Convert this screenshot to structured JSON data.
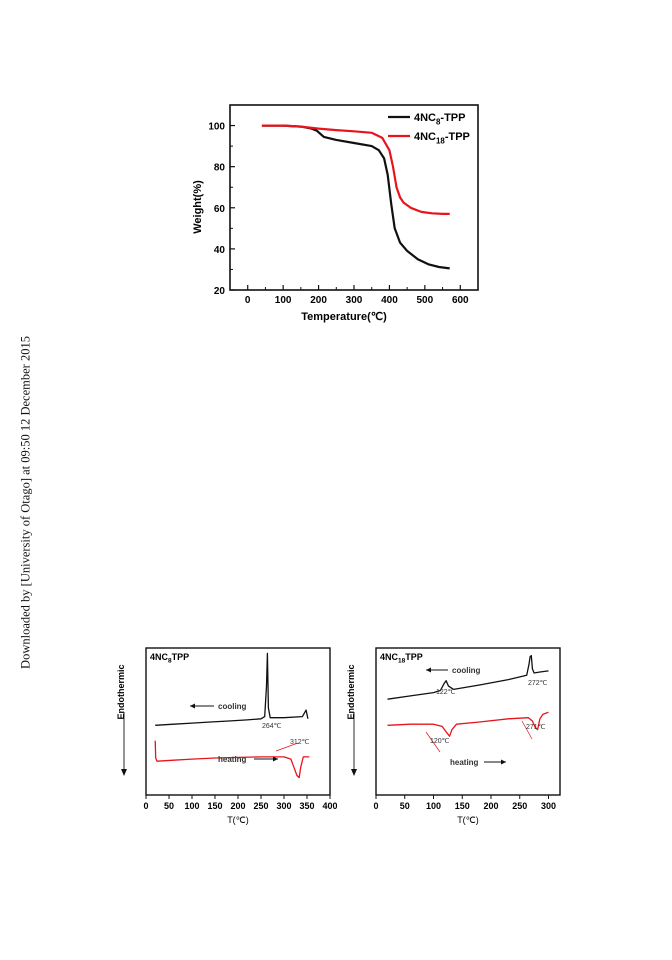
{
  "watermark": "Downloaded by [University of Otago] at 09:50 12 December 2015",
  "chart_data": [
    {
      "type": "line",
      "xlabel": "Temperature(℃)",
      "ylabel": "Weight(%)",
      "xlim": [
        -50,
        650
      ],
      "ylim": [
        20,
        110
      ],
      "xticks": [
        "0",
        "100",
        "200",
        "300",
        "400",
        "500",
        "600"
      ],
      "yticks": [
        "20",
        "40",
        "60",
        "80",
        "100"
      ],
      "legend_position": "top-right",
      "series": [
        {
          "name": "4NC8-TPP",
          "legend_main": "4NC",
          "legend_sub": "8",
          "legend_tail": "-TPP",
          "color": "#111111",
          "x": [
            40,
            100,
            150,
            180,
            195,
            205,
            215,
            250,
            300,
            350,
            370,
            385,
            395,
            405,
            415,
            430,
            450,
            480,
            510,
            540,
            570
          ],
          "y": [
            100,
            100,
            99.5,
            98.5,
            97.5,
            96,
            94.5,
            93,
            91.5,
            90,
            88,
            84,
            76,
            62,
            50,
            43,
            39,
            35,
            32.5,
            31.2,
            30.5
          ]
        },
        {
          "name": "4NC18-TPP",
          "legend_main": "4NC",
          "legend_sub": "18",
          "legend_tail": "-TPP",
          "color": "#e8141c",
          "x": [
            40,
            100,
            150,
            200,
            250,
            300,
            350,
            380,
            400,
            410,
            420,
            430,
            440,
            460,
            490,
            520,
            550,
            570
          ],
          "y": [
            100,
            100,
            99.5,
            98.5,
            97.8,
            97.2,
            96.5,
            94,
            88,
            80,
            70,
            65,
            62.5,
            60,
            58,
            57.3,
            57,
            57
          ]
        }
      ]
    },
    {
      "type": "line",
      "title_main": "4NC",
      "title_sub": "8",
      "title_tail": "TPP",
      "xlabel": "T(℃)",
      "ylabel": "Endothermic",
      "xlim": [
        0,
        400
      ],
      "xticks": [
        "0",
        "50",
        "100",
        "150",
        "200",
        "250",
        "300",
        "350",
        "400"
      ],
      "annotations": [
        "cooling",
        "heating",
        "264℃",
        "312℃"
      ],
      "series": [
        {
          "name": "cooling",
          "color": "#111111",
          "x": [
            20,
            60,
            100,
            140,
            180,
            220,
            250,
            258,
            262,
            264,
            266,
            270,
            300,
            340,
            348,
            352
          ],
          "y": [
            0.34,
            0.35,
            0.36,
            0.37,
            0.38,
            0.39,
            0.4,
            0.42,
            0.7,
            1.0,
            0.5,
            0.41,
            0.41,
            0.42,
            0.48,
            0.4
          ]
        },
        {
          "name": "heating",
          "color": "#e8141c",
          "x": [
            20,
            21,
            24,
            60,
            100,
            150,
            200,
            250,
            300,
            315,
            322,
            328,
            333,
            336,
            342,
            350,
            355
          ],
          "y": [
            0.2,
            0.04,
            0.01,
            0.02,
            0.03,
            0.04,
            0.045,
            0.05,
            0.05,
            0.03,
            -0.05,
            -0.12,
            -0.14,
            -0.05,
            0.05,
            0.05,
            0.05
          ]
        }
      ]
    },
    {
      "type": "line",
      "title_main": "4NC",
      "title_sub": "18",
      "title_tail": "TPP",
      "xlabel": "T(℃)",
      "ylabel": "Endothermic",
      "xlim": [
        0,
        320
      ],
      "xticks": [
        "0",
        "50",
        "100",
        "150",
        "200",
        "250",
        "300"
      ],
      "annotations": [
        "cooling",
        "heating",
        "122℃",
        "272℃",
        "120℃",
        "271℃"
      ],
      "series": [
        {
          "name": "cooling",
          "color": "#111111",
          "x": [
            20,
            60,
            100,
            112,
            118,
            122,
            126,
            135,
            180,
            230,
            262,
            266,
            268,
            270,
            272,
            275,
            285,
            300
          ],
          "y": [
            0.58,
            0.61,
            0.64,
            0.66,
            0.72,
            0.75,
            0.7,
            0.67,
            0.71,
            0.76,
            0.8,
            0.9,
            0.97,
            0.98,
            0.86,
            0.82,
            0.83,
            0.84
          ]
        },
        {
          "name": "heating",
          "color": "#e8141c",
          "x": [
            20,
            60,
            100,
            115,
            122,
            128,
            132,
            140,
            180,
            230,
            265,
            272,
            277,
            281,
            285,
            290,
            300
          ],
          "y": [
            0.34,
            0.35,
            0.35,
            0.33,
            0.28,
            0.24,
            0.3,
            0.35,
            0.37,
            0.4,
            0.41,
            0.38,
            0.32,
            0.3,
            0.4,
            0.44,
            0.46
          ]
        }
      ]
    }
  ]
}
